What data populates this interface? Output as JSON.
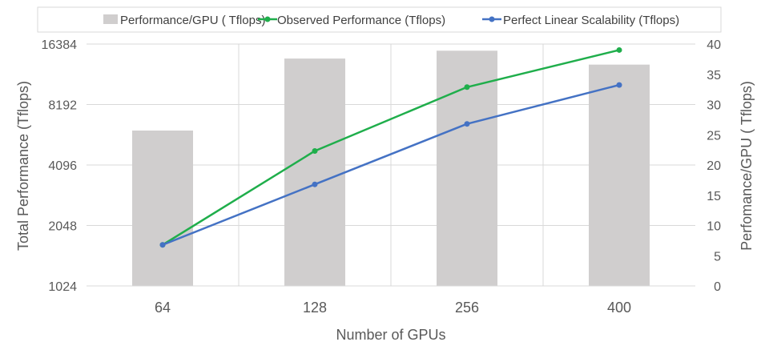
{
  "chart_data": {
    "type": "bar+line",
    "categories": [
      "64",
      "128",
      "256",
      "400"
    ],
    "series": [
      {
        "name": "Performance/GPU ( Tflops)",
        "type": "bar",
        "axis": "right",
        "color": "#d0cece",
        "values": [
          25.7,
          37.6,
          38.9,
          36.6
        ]
      },
      {
        "name": "Observed Performance (Tflops)",
        "type": "line",
        "axis": "left",
        "color": "#1fae4b",
        "values": [
          1640,
          4810,
          10000,
          15300
        ]
      },
      {
        "name": "Perfect Linear Scalability (Tflops)",
        "type": "line",
        "axis": "left",
        "color": "#4472c4",
        "values": [
          1640,
          3280,
          6560,
          10250
        ]
      }
    ],
    "xlabel": "Number of GPUs",
    "ylabel_left": "Total Performance (Tflops)",
    "ylabel_right": "Perfomance/GPU ( Tflops)",
    "y_left": {
      "scale": "log2",
      "ticks": [
        "1024",
        "2048",
        "4096",
        "8192",
        "16384"
      ],
      "range": [
        1024,
        16384
      ]
    },
    "y_right": {
      "scale": "linear",
      "ticks": [
        "0",
        "5",
        "10",
        "15",
        "20",
        "25",
        "30",
        "35",
        "40"
      ],
      "range": [
        0,
        40
      ]
    },
    "grid": true,
    "legend_position": "top"
  }
}
